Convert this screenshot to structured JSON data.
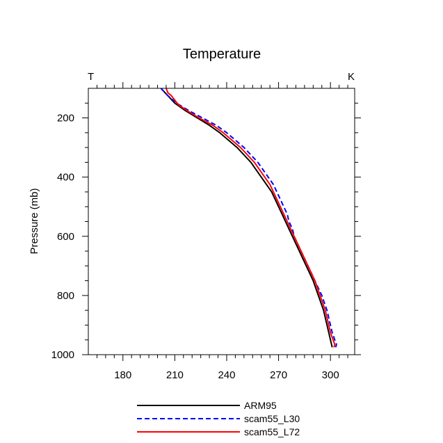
{
  "chart_data": {
    "type": "line",
    "title": "Temperature",
    "corner_left": "T",
    "corner_right": "K",
    "xlabel": "",
    "ylabel": "Pressure (mb)",
    "xlim": [
      160,
      314
    ],
    "ylim": [
      100,
      1000
    ],
    "y_reversed": true,
    "xticks": [
      180,
      210,
      240,
      270,
      300
    ],
    "yticks": [
      200,
      400,
      600,
      800,
      1000
    ],
    "legend_position": "bottom",
    "series": [
      {
        "name": "ARM95",
        "color": "#000000",
        "dash": "solid",
        "points": [
          [
            202,
            100
          ],
          [
            206,
            125
          ],
          [
            210,
            150
          ],
          [
            216,
            175
          ],
          [
            223,
            200
          ],
          [
            230,
            225
          ],
          [
            236,
            250
          ],
          [
            241,
            275
          ],
          [
            246,
            300
          ],
          [
            250,
            325
          ],
          [
            254,
            350
          ],
          [
            257,
            375
          ],
          [
            260,
            400
          ],
          [
            263,
            425
          ],
          [
            266,
            450
          ],
          [
            268,
            475
          ],
          [
            270,
            500
          ],
          [
            272,
            525
          ],
          [
            274,
            550
          ],
          [
            276,
            575
          ],
          [
            278,
            600
          ],
          [
            280,
            625
          ],
          [
            282,
            650
          ],
          [
            284,
            675
          ],
          [
            286,
            700
          ],
          [
            288,
            725
          ],
          [
            290,
            750
          ],
          [
            291.5,
            775
          ],
          [
            293,
            800
          ],
          [
            294.5,
            825
          ],
          [
            296,
            850
          ],
          [
            297,
            875
          ],
          [
            298,
            900
          ],
          [
            299,
            925
          ],
          [
            300,
            950
          ],
          [
            301,
            975
          ]
        ]
      },
      {
        "name": "scam55_L30",
        "color": "#0000ff",
        "dash": "dashed",
        "points": [
          [
            202,
            100
          ],
          [
            206,
            125
          ],
          [
            211,
            150
          ],
          [
            218,
            175
          ],
          [
            226,
            200
          ],
          [
            234,
            225
          ],
          [
            240,
            250
          ],
          [
            245,
            275
          ],
          [
            250,
            300
          ],
          [
            254,
            325
          ],
          [
            258,
            350
          ],
          [
            261,
            375
          ],
          [
            264,
            400
          ],
          [
            267,
            425
          ],
          [
            269,
            450
          ],
          [
            271,
            475
          ],
          [
            273,
            500
          ],
          [
            275,
            525
          ],
          [
            276,
            550
          ],
          [
            278,
            575
          ],
          [
            279,
            600
          ],
          [
            281,
            625
          ],
          [
            283,
            650
          ],
          [
            285,
            675
          ],
          [
            287,
            700
          ],
          [
            289,
            725
          ],
          [
            291,
            750
          ],
          [
            293,
            775
          ],
          [
            295,
            800
          ],
          [
            296.5,
            825
          ],
          [
            298,
            850
          ],
          [
            299,
            875
          ],
          [
            300,
            900
          ],
          [
            301,
            925
          ],
          [
            302.5,
            950
          ],
          [
            303.5,
            965
          ],
          [
            303,
            975
          ]
        ]
      },
      {
        "name": "scam55_L72",
        "color": "#ff0000",
        "dash": "solid",
        "points": [
          [
            205,
            100
          ],
          [
            206,
            115
          ],
          [
            208,
            125
          ],
          [
            210,
            140
          ],
          [
            212,
            155
          ],
          [
            217,
            175
          ],
          [
            224,
            200
          ],
          [
            232,
            225
          ],
          [
            238,
            250
          ],
          [
            243,
            275
          ],
          [
            248,
            300
          ],
          [
            252,
            325
          ],
          [
            256,
            350
          ],
          [
            259,
            375
          ],
          [
            262,
            400
          ],
          [
            265,
            425
          ],
          [
            267,
            450
          ],
          [
            269,
            475
          ],
          [
            271,
            500
          ],
          [
            273,
            525
          ],
          [
            275,
            550
          ],
          [
            277,
            575
          ],
          [
            279,
            600
          ],
          [
            281,
            625
          ],
          [
            283,
            650
          ],
          [
            285,
            675
          ],
          [
            287,
            700
          ],
          [
            289,
            725
          ],
          [
            291,
            750
          ],
          [
            292.5,
            775
          ],
          [
            294,
            800
          ],
          [
            295.5,
            825
          ],
          [
            297,
            850
          ],
          [
            298,
            875
          ],
          [
            299,
            900
          ],
          [
            300,
            925
          ],
          [
            301.5,
            950
          ],
          [
            302.5,
            965
          ],
          [
            302,
            975
          ]
        ]
      }
    ]
  }
}
